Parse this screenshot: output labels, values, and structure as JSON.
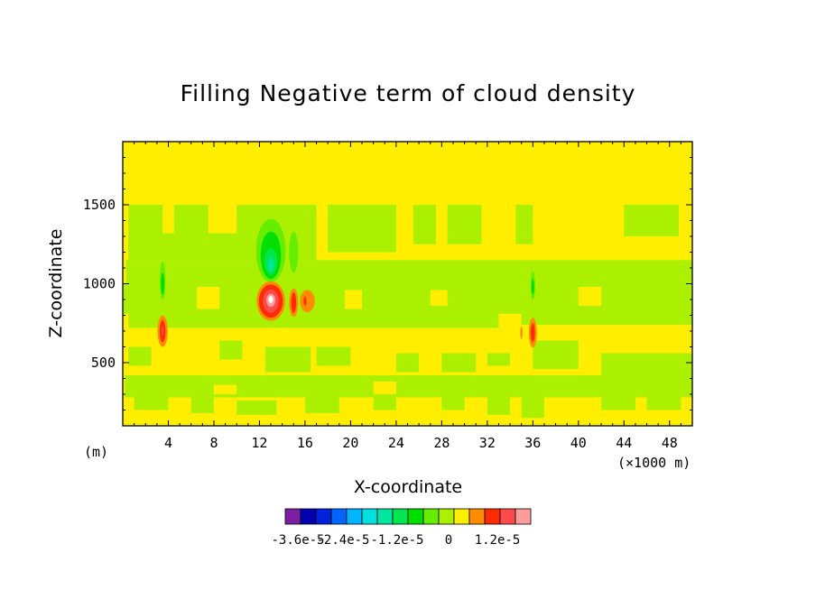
{
  "chart_data": {
    "type": "heatmap",
    "title": "Filling Negative term of cloud density",
    "xlabel": "X-coordinate",
    "ylabel": "Z-coordinate",
    "x_unit_note": "(m)",
    "x_scale_note": "(×1000 m)",
    "xlim": [
      0,
      50
    ],
    "ylim": [
      100,
      1900
    ],
    "x_ticks": [
      "4",
      "8",
      "12",
      "16",
      "20",
      "24",
      "28",
      "32",
      "36",
      "40",
      "44",
      "48"
    ],
    "y_ticks": [
      "500",
      "1000",
      "1500"
    ],
    "grid": false,
    "colorbar": {
      "placement": "bottom",
      "colors": [
        "#7b1fa2",
        "#0000b0",
        "#0022dd",
        "#0066ff",
        "#00b4ff",
        "#00e0e0",
        "#00e6a0",
        "#00e650",
        "#00e000",
        "#66ee00",
        "#aaf000",
        "#ffee00",
        "#ff8c00",
        "#ff2a00",
        "#ff4a4a",
        "#ff9c9c"
      ],
      "labels": [
        "-3.6e-5",
        "-2.4e-5",
        "-1.2e-5",
        "0",
        "1.2e-5"
      ]
    },
    "features": [
      {
        "x": 13.0,
        "z": 890,
        "level": "max positive"
      },
      {
        "x": 13.0,
        "z": 1150,
        "level": "negative minimum"
      },
      {
        "x": 15.0,
        "z": 880,
        "level": "positive"
      },
      {
        "x": 16.2,
        "z": 890,
        "level": "positive"
      },
      {
        "x": 3.5,
        "z": 700,
        "level": "positive"
      },
      {
        "x": 3.5,
        "z": 1010,
        "level": "negative"
      },
      {
        "x": 36.0,
        "z": 690,
        "level": "positive"
      },
      {
        "x": 36.0,
        "z": 980,
        "level": "negative"
      }
    ]
  }
}
